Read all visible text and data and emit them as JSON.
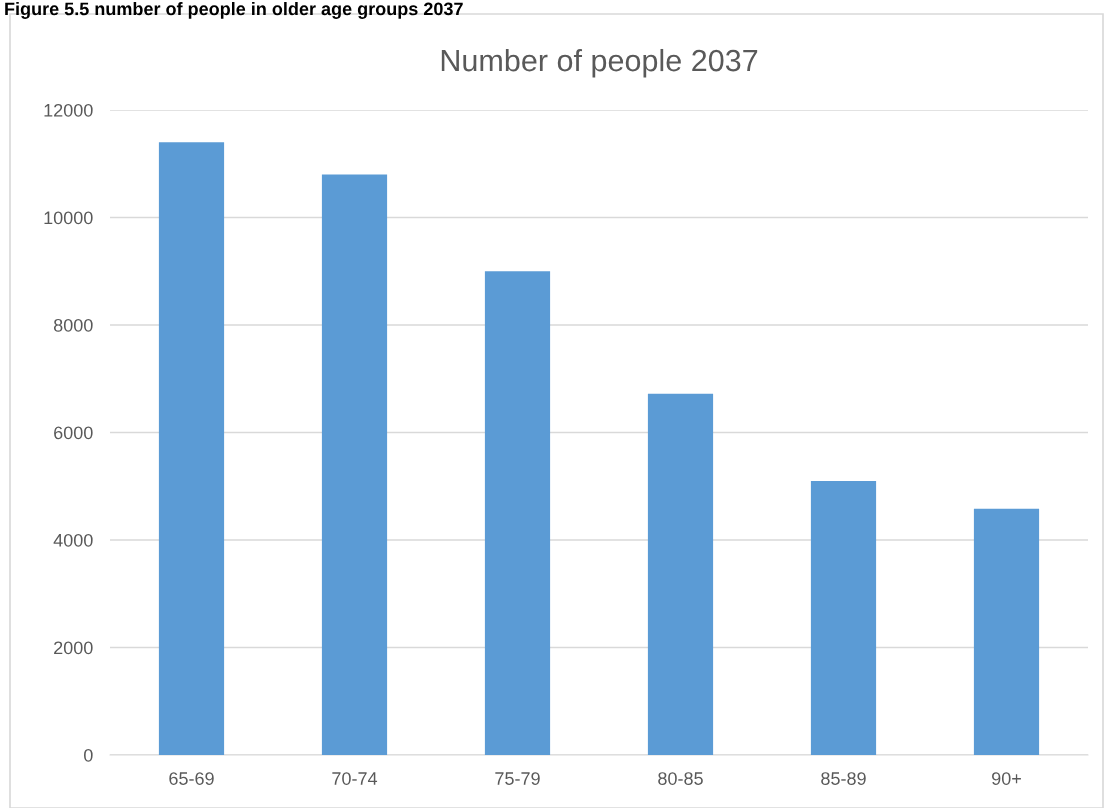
{
  "chart_data": {
    "type": "bar",
    "title": "Number of people 2037",
    "annotations": [
      "Figure 5.5 number of people in older age groups 2037"
    ],
    "categories": [
      "65-69",
      "70-74",
      "75-79",
      "80-85",
      "85-89",
      "90+"
    ],
    "values": [
      11400,
      10800,
      9000,
      6720,
      5100,
      4580
    ],
    "color": "#5b9bd5",
    "ylim": [
      0,
      12000
    ],
    "yticks": [
      0,
      2000,
      4000,
      6000,
      8000,
      10000,
      12000
    ],
    "grid": "y"
  }
}
